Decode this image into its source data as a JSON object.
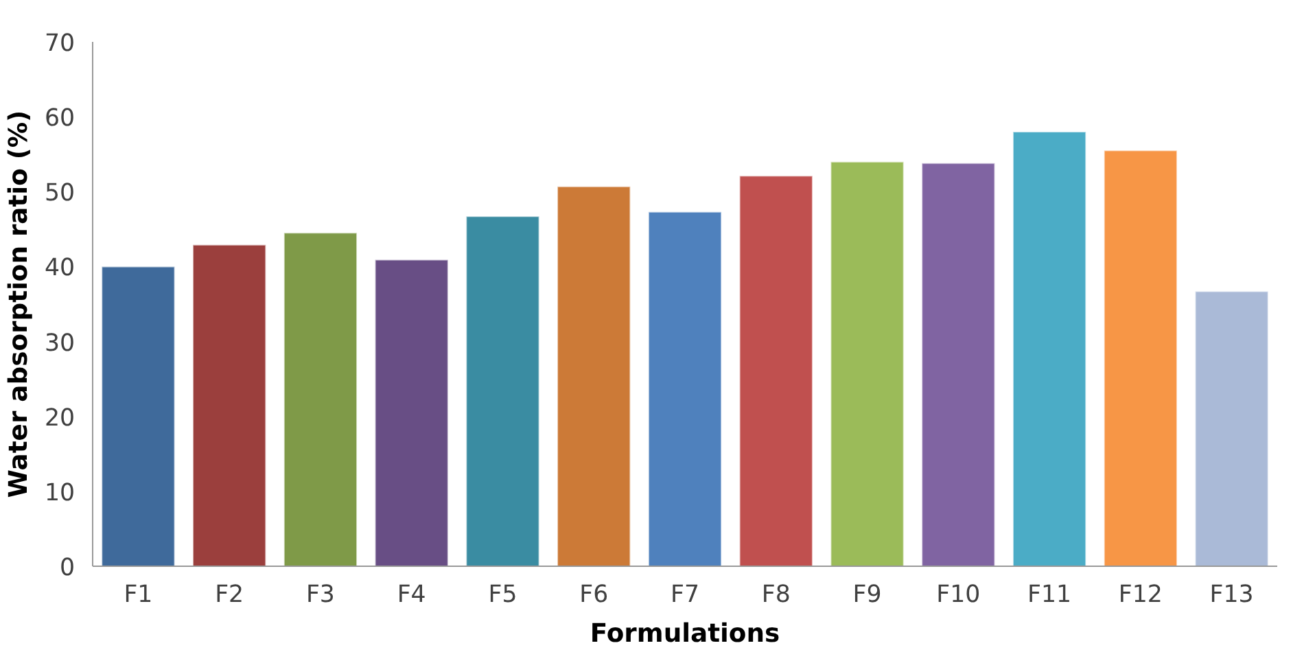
{
  "chart_data": {
    "type": "bar",
    "xlabel": "Formulations",
    "ylabel": "Water absorption ratio (%)",
    "categories": [
      "F1",
      "F2",
      "F3",
      "F4",
      "F5",
      "F6",
      "F7",
      "F8",
      "F9",
      "F10",
      "F11",
      "F12",
      "F13"
    ],
    "values": [
      40.0,
      42.9,
      44.5,
      40.9,
      46.7,
      50.7,
      47.3,
      52.1,
      54.0,
      53.8,
      58.0,
      55.5,
      36.7
    ],
    "colors": [
      "#3f6a9b",
      "#9b3f3d",
      "#7f9a48",
      "#684e85",
      "#3a8ca2",
      "#cc7a37",
      "#4f81bd",
      "#c0504f",
      "#9bbb59",
      "#8064a2",
      "#4bacc6",
      "#f79646",
      "#aabad7"
    ],
    "ylim": [
      0,
      70
    ],
    "yticks": [
      0,
      10,
      20,
      30,
      40,
      50,
      60,
      70
    ],
    "grid": false
  }
}
